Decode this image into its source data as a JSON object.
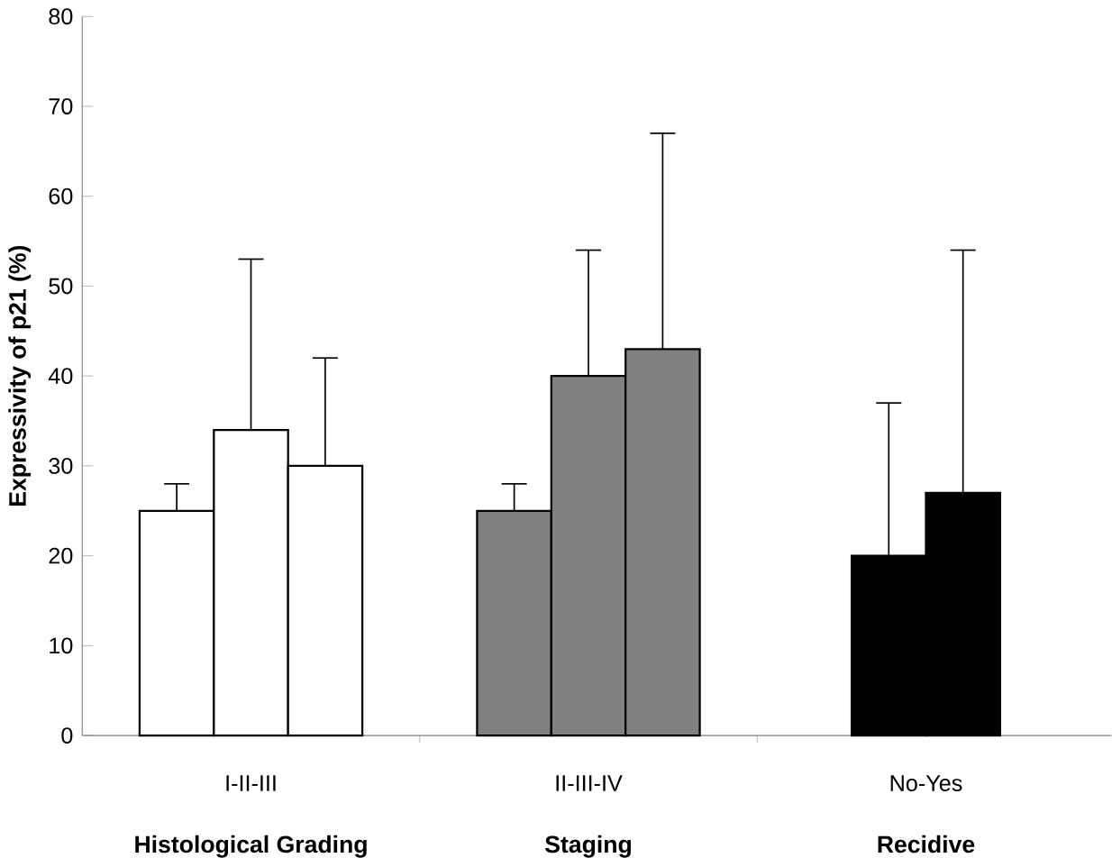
{
  "chart_data": {
    "type": "bar",
    "ylabel": "Expressivity of p21 (%)",
    "categories": [
      "I-II-III",
      "II-III-IV",
      "No-Yes"
    ],
    "series": [
      {
        "colors": [
          "#ffffff",
          "#808080",
          "#000000"
        ],
        "values": [
          25,
          25,
          20
        ],
        "errors": [
          [
            25,
            28
          ],
          [
            25,
            28
          ],
          [
            20,
            37
          ]
        ]
      },
      {
        "colors": [
          "#ffffff",
          "#808080",
          "#000000"
        ],
        "values": [
          34,
          40,
          27
        ],
        "errors": [
          [
            34,
            53
          ],
          [
            40,
            54
          ],
          [
            27,
            54
          ]
        ]
      },
      {
        "colors": [
          "#ffffff",
          "#808080",
          "#000000"
        ],
        "values": [
          30,
          43,
          null
        ],
        "errors": [
          [
            30,
            42
          ],
          [
            43,
            67
          ],
          null
        ]
      }
    ],
    "ylim": [
      0,
      80
    ],
    "yticks": [
      0,
      10,
      20,
      30,
      40,
      50,
      60,
      70,
      80
    ],
    "grid": false,
    "annotations": [
      "Histological Grading",
      "Staging",
      "Recidive"
    ]
  }
}
